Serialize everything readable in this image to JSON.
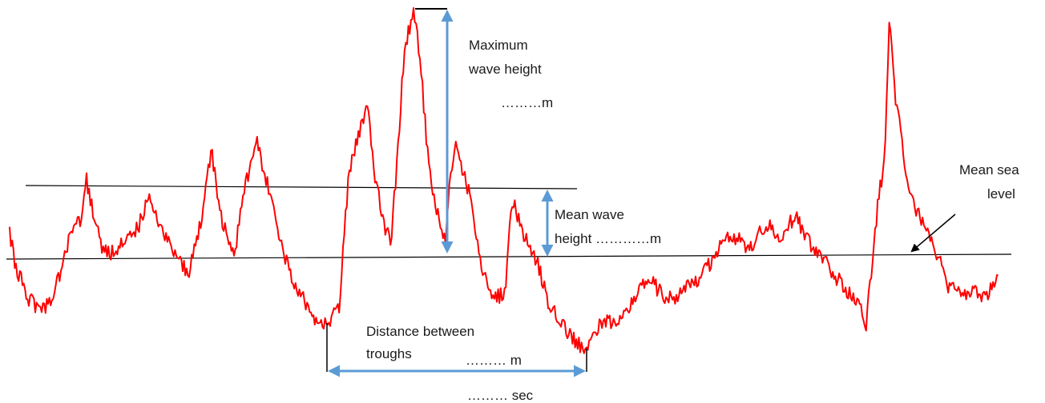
{
  "labels": {
    "max_wave_line1": "Maximum",
    "max_wave_line2": "wave height",
    "max_wave_value": "………m",
    "mean_wave_line1": "Mean wave",
    "mean_wave_line2": "height …………m",
    "msl_line1": "Mean sea",
    "msl_line2": "level",
    "troughs_line1": "Distance between",
    "troughs_line2": "troughs",
    "troughs_distance": "……… m",
    "troughs_time": "……… sec"
  },
  "colors": {
    "wave_trace": "#ff0000",
    "measure_arrows": "#5b9bd5",
    "reference_lines": "#000000"
  }
}
